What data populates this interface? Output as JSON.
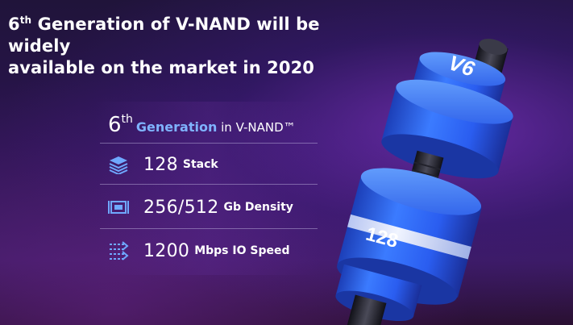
{
  "headline": {
    "line1_pre": "6",
    "line1_sup": "th",
    "line1_post": " Generation of V-NAND will be widely",
    "line2": "available on the market in 2020"
  },
  "generation": {
    "number": "6",
    "sup": "th",
    "word": "Generation",
    "in": " in ",
    "product": "V-NAND™"
  },
  "specs": [
    {
      "icon": "stack-layers-icon",
      "value": "128",
      "label": "Stack"
    },
    {
      "icon": "density-chip-icon",
      "value": "256/512",
      "label": "Gb Density"
    },
    {
      "icon": "speed-arrows-icon",
      "value": "1200",
      "label": "Mbps IO Speed"
    }
  ],
  "dumbbell": {
    "top_label": "V6",
    "bottom_label": "128"
  },
  "colors": {
    "accent": "#7fb3ff",
    "disk_blue": "#2e6cff",
    "disk_light": "#4e95ff",
    "band": "#dbe4ff"
  }
}
